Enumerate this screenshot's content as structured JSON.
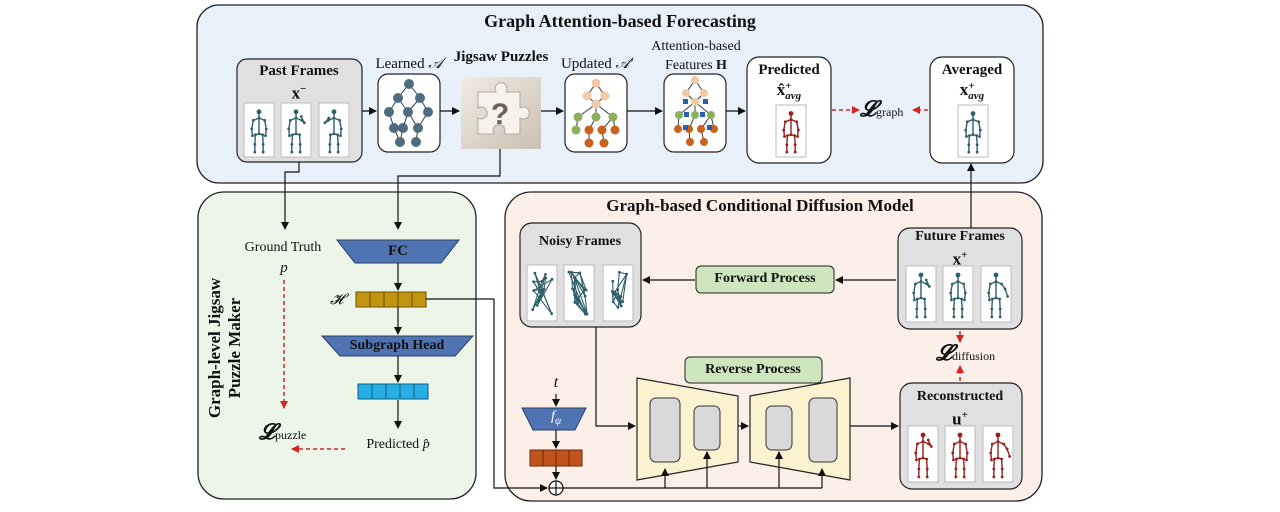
{
  "top_panel": {
    "title": "Graph Attention-based Forecasting",
    "past_frames": {
      "label": "Past Frames",
      "var": "x",
      "sup": "−"
    },
    "learned": {
      "label": "Learned",
      "sym": "𝒜"
    },
    "jigsaw": {
      "label": "Jigsaw Puzzles"
    },
    "updated": {
      "label": "Updated",
      "sym": "𝒜′"
    },
    "attention": {
      "line1": "Attention-based",
      "line2": "Features",
      "sym": "H"
    },
    "predicted": {
      "label": "Predicted",
      "var": "x̂",
      "sup": "+",
      "sub": "avg"
    },
    "averaged": {
      "label": "Averaged",
      "var": "x",
      "sup": "+",
      "sub": "avg"
    },
    "loss_graph": {
      "sym": "𝓛",
      "sub": "graph"
    }
  },
  "left_panel": {
    "title_line1": "Graph-level Jigsaw",
    "title_line2": "Puzzle Maker",
    "ground_truth": "Ground Truth",
    "p": "p",
    "fc": "FC",
    "h": "𝓗",
    "subgraph_head": "Subgraph Head",
    "predicted": "Predicted",
    "p_hat": "p̂",
    "loss_puzzle": {
      "sym": "𝓛",
      "sub": "puzzle"
    }
  },
  "right_panel": {
    "title": "Graph-based Conditional Diffusion Model",
    "noisy_frames": "Noisy Frames",
    "forward_process": "Forward Process",
    "future_frames": {
      "label": "Future Frames",
      "var": "x",
      "sup": "+"
    },
    "loss_diffusion": {
      "sym": "𝓛",
      "sub": "diffusion"
    },
    "reverse_process": "Reverse Process",
    "t": "t",
    "f_psi": {
      "f": "f",
      "sub": "ψ"
    },
    "reconstructed": {
      "label": "Reconstructed",
      "var": "u",
      "sup": "+"
    }
  },
  "colors": {
    "top_bg": "#e8f0f9",
    "left_bg": "#edf4e8",
    "right_bg": "#fbefe8",
    "node_dark": "#4d6c80",
    "node_orange": "#c8621c",
    "node_green": "#8cb060",
    "skeleton_blue": "#2e5f6a",
    "skeleton_red": "#9a1d1d",
    "green_box": "#cde6bd",
    "fc_blue": "#4f73b3",
    "h_gold": "#c29410",
    "cyan": "#27aee5",
    "dark_orange": "#c1521a",
    "unet_fill": "#fbf2cf",
    "red_dashed": "#d62424"
  }
}
